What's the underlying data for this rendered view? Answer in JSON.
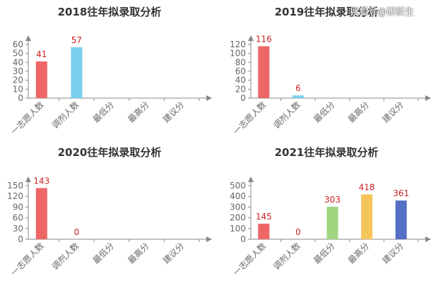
{
  "watermark": "搜狐号@研新生",
  "colors": {
    "axis": "#888888",
    "tick_text": "#666666",
    "value_label": "#cc2222",
    "title": "#333333"
  },
  "chart_data": [
    {
      "type": "bar",
      "title": "2018往年拟录取分析",
      "categories": [
        "一志愿人数",
        "调剂人数",
        "最低分",
        "最高分",
        "建议分"
      ],
      "values": [
        41,
        57,
        null,
        null,
        null
      ],
      "data_labels": [
        "41",
        "57",
        "",
        "",
        ""
      ],
      "bar_colors": [
        "#ee6666",
        "#7cd0ef",
        "#9fd67f",
        "#f6c55a",
        "#5470c6"
      ],
      "ylim": [
        0,
        60
      ],
      "yticks": [
        0,
        10,
        20,
        30,
        40,
        50,
        60
      ]
    },
    {
      "type": "bar",
      "title": "2019往年拟录取分析",
      "categories": [
        "一志愿人数",
        "调剂人数",
        "最低分",
        "最高分",
        "建议分"
      ],
      "values": [
        116,
        6,
        null,
        null,
        null
      ],
      "data_labels": [
        "116",
        "6",
        "",
        "",
        ""
      ],
      "bar_colors": [
        "#ee6666",
        "#7cd0ef",
        "#9fd67f",
        "#f6c55a",
        "#5470c6"
      ],
      "ylim": [
        0,
        120
      ],
      "yticks": [
        0,
        20,
        40,
        60,
        80,
        100,
        120
      ]
    },
    {
      "type": "bar",
      "title": "2020往年拟录取分析",
      "categories": [
        "一志愿人数",
        "调剂人数",
        "最低分",
        "最高分",
        "建议分"
      ],
      "values": [
        143,
        0,
        null,
        null,
        null
      ],
      "data_labels": [
        "143",
        "0",
        "",
        "",
        ""
      ],
      "bar_colors": [
        "#ee6666",
        "#7cd0ef",
        "#9fd67f",
        "#f6c55a",
        "#5470c6"
      ],
      "ylim": [
        0,
        150
      ],
      "yticks": [
        0,
        30,
        60,
        90,
        120,
        150
      ]
    },
    {
      "type": "bar",
      "title": "2021往年拟录取分析",
      "categories": [
        "一志愿人数",
        "调剂人数",
        "最低分",
        "最高分",
        "建议分"
      ],
      "values": [
        145,
        0,
        303,
        418,
        361
      ],
      "data_labels": [
        "145",
        "0",
        "303",
        "418",
        "361"
      ],
      "bar_colors": [
        "#ee6666",
        "#7cd0ef",
        "#9fd67f",
        "#f6c55a",
        "#5470c6"
      ],
      "ylim": [
        0,
        500
      ],
      "yticks": [
        0,
        100,
        200,
        300,
        400,
        500
      ]
    }
  ]
}
